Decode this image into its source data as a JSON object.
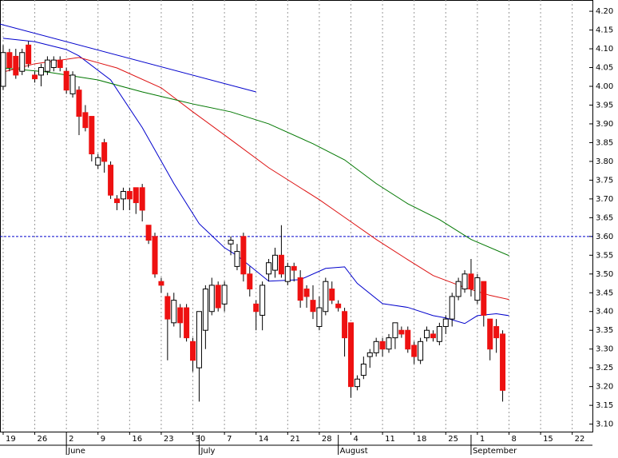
{
  "chart_data": {
    "type": "candlestick",
    "x": [
      0,
      1,
      2,
      3,
      4,
      5,
      6,
      7,
      8,
      9,
      10,
      11,
      12,
      13,
      14,
      15,
      16,
      17,
      18,
      19,
      20,
      21,
      22,
      23,
      24,
      25,
      26,
      27,
      28,
      29,
      30,
      31,
      32,
      33,
      34,
      35,
      36,
      37,
      38,
      39,
      40,
      41,
      42,
      43,
      44,
      45,
      46,
      47,
      48,
      49,
      50,
      51,
      52,
      53,
      54,
      55,
      56,
      57,
      58,
      59,
      60,
      61,
      62,
      63,
      64,
      65,
      66,
      67,
      68,
      69,
      70,
      71,
      72,
      73,
      74,
      75,
      76,
      77,
      78,
      79
    ],
    "open": [
      4.0,
      4.09,
      4.08,
      4.04,
      4.11,
      4.03,
      4.03,
      4.04,
      4.05,
      4.07,
      4.04,
      3.98,
      3.99,
      3.93,
      3.92,
      3.79,
      3.85,
      3.79,
      3.7,
      3.7,
      3.72,
      3.73,
      3.73,
      3.63,
      3.6,
      3.48,
      3.44,
      3.37,
      3.41,
      3.41,
      3.32,
      3.25,
      3.35,
      3.4,
      3.47,
      3.42,
      3.58,
      3.52,
      3.6,
      3.5,
      3.42,
      3.39,
      3.5,
      3.51,
      3.55,
      3.48,
      3.52,
      3.49,
      3.46,
      3.43,
      3.36,
      3.4,
      3.46,
      3.42,
      3.4,
      3.37,
      3.2,
      3.23,
      3.28,
      3.29,
      3.32,
      3.3,
      3.33,
      3.35,
      3.35,
      3.31,
      3.27,
      3.33,
      3.34,
      3.32,
      3.36,
      3.38,
      3.44,
      3.46,
      3.5,
      3.43,
      3.48,
      3.38,
      3.36,
      3.34
    ],
    "high": [
      4.11,
      4.1,
      4.1,
      4.1,
      4.12,
      4.04,
      4.06,
      4.08,
      4.08,
      4.08,
      4.05,
      4.04,
      4.0,
      3.95,
      3.92,
      3.82,
      3.86,
      3.8,
      3.71,
      3.73,
      3.73,
      3.73,
      3.74,
      3.63,
      3.61,
      3.49,
      3.45,
      3.45,
      3.42,
      3.42,
      3.33,
      3.4,
      3.47,
      3.49,
      3.48,
      3.48,
      3.6,
      3.58,
      3.61,
      3.52,
      3.43,
      3.48,
      3.54,
      3.57,
      3.63,
      3.53,
      3.53,
      3.51,
      3.47,
      3.47,
      3.44,
      3.49,
      3.48,
      3.43,
      3.41,
      3.37,
      3.23,
      3.28,
      3.3,
      3.33,
      3.33,
      3.34,
      3.37,
      3.36,
      3.36,
      3.32,
      3.33,
      3.36,
      3.35,
      3.37,
      3.39,
      3.45,
      3.49,
      3.51,
      3.54,
      3.5,
      3.48,
      3.38,
      3.38,
      3.35
    ],
    "low": [
      3.99,
      4.04,
      4.02,
      4.03,
      4.05,
      4.01,
      4.0,
      4.03,
      4.04,
      4.04,
      3.98,
      3.97,
      3.87,
      3.88,
      3.8,
      3.78,
      3.77,
      3.7,
      3.67,
      3.67,
      3.67,
      3.66,
      3.64,
      3.58,
      3.49,
      3.45,
      3.27,
      3.36,
      3.33,
      3.32,
      3.24,
      3.16,
      3.3,
      3.39,
      3.4,
      3.4,
      3.55,
      3.51,
      3.48,
      3.44,
      3.35,
      3.35,
      3.48,
      3.49,
      3.49,
      3.47,
      3.48,
      3.41,
      3.41,
      3.38,
      3.35,
      3.39,
      3.42,
      3.4,
      3.28,
      3.17,
      3.19,
      3.22,
      3.25,
      3.28,
      3.28,
      3.29,
      3.3,
      3.33,
      3.29,
      3.26,
      3.26,
      3.32,
      3.32,
      3.31,
      3.34,
      3.36,
      3.43,
      3.45,
      3.44,
      3.42,
      3.36,
      3.27,
      3.29,
      3.16
    ],
    "close": [
      4.09,
      4.05,
      4.03,
      4.09,
      4.06,
      4.02,
      4.05,
      4.07,
      4.07,
      4.05,
      3.99,
      4.03,
      3.92,
      3.89,
      3.82,
      3.81,
      3.8,
      3.71,
      3.69,
      3.72,
      3.7,
      3.69,
      3.67,
      3.59,
      3.5,
      3.47,
      3.38,
      3.43,
      3.37,
      3.33,
      3.27,
      3.4,
      3.46,
      3.47,
      3.41,
      3.47,
      3.59,
      3.56,
      3.5,
      3.46,
      3.4,
      3.47,
      3.53,
      3.55,
      3.5,
      3.52,
      3.51,
      3.43,
      3.44,
      3.4,
      3.41,
      3.48,
      3.43,
      3.41,
      3.33,
      3.2,
      3.22,
      3.26,
      3.29,
      3.32,
      3.3,
      3.33,
      3.37,
      3.34,
      3.3,
      3.28,
      3.32,
      3.35,
      3.33,
      3.36,
      3.38,
      3.44,
      3.48,
      3.5,
      3.46,
      3.49,
      3.39,
      3.3,
      3.33,
      3.19
    ],
    "up_color": "#ffffff",
    "down_color": "#ee1111",
    "lines": [
      {
        "color": "#0000cc",
        "x": [
          0,
          5,
          10,
          12,
          17,
          22,
          27,
          31,
          35,
          37,
          42,
          47,
          51,
          54,
          56,
          60,
          64,
          68,
          70,
          73,
          75,
          78,
          80
        ],
        "values": [
          4.128,
          4.119,
          4.098,
          4.081,
          4.017,
          3.89,
          3.741,
          3.634,
          3.57,
          3.549,
          3.481,
          3.485,
          3.515,
          3.519,
          3.475,
          3.421,
          3.411,
          3.389,
          3.383,
          3.368,
          3.389,
          3.394,
          3.389
        ]
      },
      {
        "color": "#dd1111",
        "x": [
          0,
          5,
          12,
          18,
          25,
          30,
          36,
          42,
          50,
          54,
          59,
          64,
          68,
          73,
          77,
          80
        ],
        "values": [
          4.038,
          4.06,
          4.077,
          4.049,
          3.996,
          3.932,
          3.858,
          3.783,
          3.698,
          3.651,
          3.592,
          3.538,
          3.496,
          3.464,
          3.443,
          3.432
        ]
      },
      {
        "color": "#007700",
        "x": [
          0,
          7,
          15,
          22,
          30,
          36,
          42,
          49,
          54,
          59,
          64,
          69,
          74,
          80
        ],
        "values": [
          4.049,
          4.038,
          4.017,
          3.985,
          3.953,
          3.932,
          3.9,
          3.847,
          3.804,
          3.741,
          3.687,
          3.645,
          3.592,
          3.549
        ]
      }
    ],
    "trendline": {
      "color": "#0000cc",
      "x": [
        -0.5,
        40
      ],
      "values": [
        4.166,
        3.985
      ]
    },
    "hline": {
      "value": 3.6,
      "color": "#0000cc"
    },
    "xlim": [
      -0.5,
      93.2
    ],
    "xticks": [
      {
        "value": 0,
        "label": "19"
      },
      {
        "value": 5,
        "label": "26"
      },
      {
        "value": 10,
        "label": "2"
      },
      {
        "value": 15,
        "label": "9"
      },
      {
        "value": 20,
        "label": "16"
      },
      {
        "value": 25,
        "label": "23"
      },
      {
        "value": 30,
        "label": "30"
      },
      {
        "value": 35,
        "label": "7"
      },
      {
        "value": 40,
        "label": "14"
      },
      {
        "value": 45,
        "label": "21"
      },
      {
        "value": 50,
        "label": "28"
      },
      {
        "value": 55,
        "label": "4"
      },
      {
        "value": 60,
        "label": "11"
      },
      {
        "value": 65,
        "label": "18"
      },
      {
        "value": 70,
        "label": "25"
      },
      {
        "value": 75,
        "label": "1"
      },
      {
        "value": 80,
        "label": "8"
      },
      {
        "value": 85,
        "label": "15"
      },
      {
        "value": 90,
        "label": "22"
      }
    ],
    "months": [
      {
        "value": 10,
        "label": "June"
      },
      {
        "value": 31,
        "label": "July"
      },
      {
        "value": 53,
        "label": "August"
      },
      {
        "value": 74,
        "label": "September"
      }
    ],
    "ylim": [
      3.08,
      4.23
    ],
    "yticks": [
      {
        "value": 3.1,
        "label": "3.10"
      },
      {
        "value": 3.15,
        "label": "3.15"
      },
      {
        "value": 3.2,
        "label": "3.20"
      },
      {
        "value": 3.25,
        "label": "3.25"
      },
      {
        "value": 3.3,
        "label": "3.30"
      },
      {
        "value": 3.35,
        "label": "3.35"
      },
      {
        "value": 3.4,
        "label": "3.40"
      },
      {
        "value": 3.45,
        "label": "3.45"
      },
      {
        "value": 3.5,
        "label": "3.50"
      },
      {
        "value": 3.55,
        "label": "3.55"
      },
      {
        "value": 3.6,
        "label": "3.60"
      },
      {
        "value": 3.65,
        "label": "3.65"
      },
      {
        "value": 3.7,
        "label": "3.70"
      },
      {
        "value": 3.75,
        "label": "3.75"
      },
      {
        "value": 3.8,
        "label": "3.80"
      },
      {
        "value": 3.85,
        "label": "3.85"
      },
      {
        "value": 3.9,
        "label": "3.90"
      },
      {
        "value": 3.95,
        "label": "3.95"
      },
      {
        "value": 4.0,
        "label": "4.00"
      },
      {
        "value": 4.05,
        "label": "4.05"
      },
      {
        "value": 4.1,
        "label": "4.10"
      },
      {
        "value": 4.15,
        "label": "4.15"
      },
      {
        "value": 4.2,
        "label": "4.20"
      }
    ],
    "grid": true
  }
}
